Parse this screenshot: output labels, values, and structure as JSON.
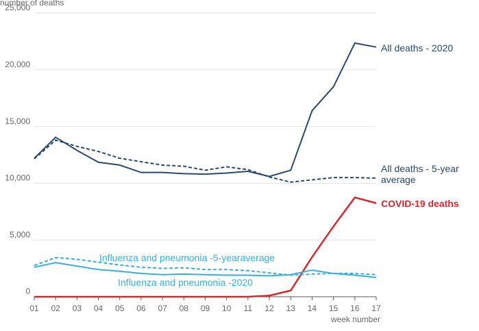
{
  "chart_data": {
    "type": "line",
    "y_axis_label": "number of deaths",
    "x_axis_label": "week number",
    "categories": [
      "01",
      "02",
      "03",
      "04",
      "05",
      "06",
      "07",
      "08",
      "09",
      "10",
      "11",
      "12",
      "13",
      "14",
      "15",
      "16",
      "17"
    ],
    "ylim": [
      0,
      25000
    ],
    "yticks": [
      0,
      {
        "value": 5000,
        "label": "5,000"
      },
      {
        "value": 10000,
        "label": "10,000"
      },
      {
        "value": 15000,
        "label": "15,000"
      },
      {
        "value": 20000,
        "label": "20,000"
      },
      {
        "value": 25000,
        "label": "25,000"
      }
    ],
    "grid": true,
    "series": [
      {
        "name": "All deaths - 2020",
        "color": "#27496d",
        "dashed": false,
        "values": [
          12200,
          14050,
          12900,
          11850,
          11600,
          10950,
          10950,
          10850,
          10800,
          10900,
          11050,
          10600,
          11150,
          16400,
          18500,
          22350,
          22000
        ]
      },
      {
        "name": "All deaths - 5-year average",
        "color": "#27496d",
        "dashed": true,
        "values": [
          12150,
          13800,
          13250,
          12800,
          12200,
          11900,
          11600,
          11500,
          11150,
          11450,
          11200,
          10550,
          10100,
          10300,
          10500,
          10500,
          10450
        ]
      },
      {
        "name": "COVID-19 deaths",
        "color": "#d2292f",
        "dashed": false,
        "values": [
          0,
          0,
          0,
          0,
          0,
          0,
          0,
          0,
          0,
          0,
          0,
          100,
          550,
          3500,
          6200,
          8750,
          8250
        ]
      },
      {
        "name": "Influenza and pneumonia -5-yearaverage",
        "color": "#3aaed6",
        "dashed": true,
        "values": [
          2750,
          3450,
          3300,
          3050,
          2800,
          2600,
          2500,
          2550,
          2400,
          2400,
          2300,
          2100,
          1900,
          2000,
          2050,
          2050,
          1950
        ]
      },
      {
        "name": "Influenza and pneumonia -2020",
        "color": "#3aaed6",
        "dashed": false,
        "values": [
          2600,
          3000,
          2700,
          2400,
          2250,
          2050,
          1950,
          2000,
          1950,
          1900,
          1900,
          1850,
          1950,
          2350,
          2050,
          1900,
          1700
        ]
      }
    ]
  }
}
